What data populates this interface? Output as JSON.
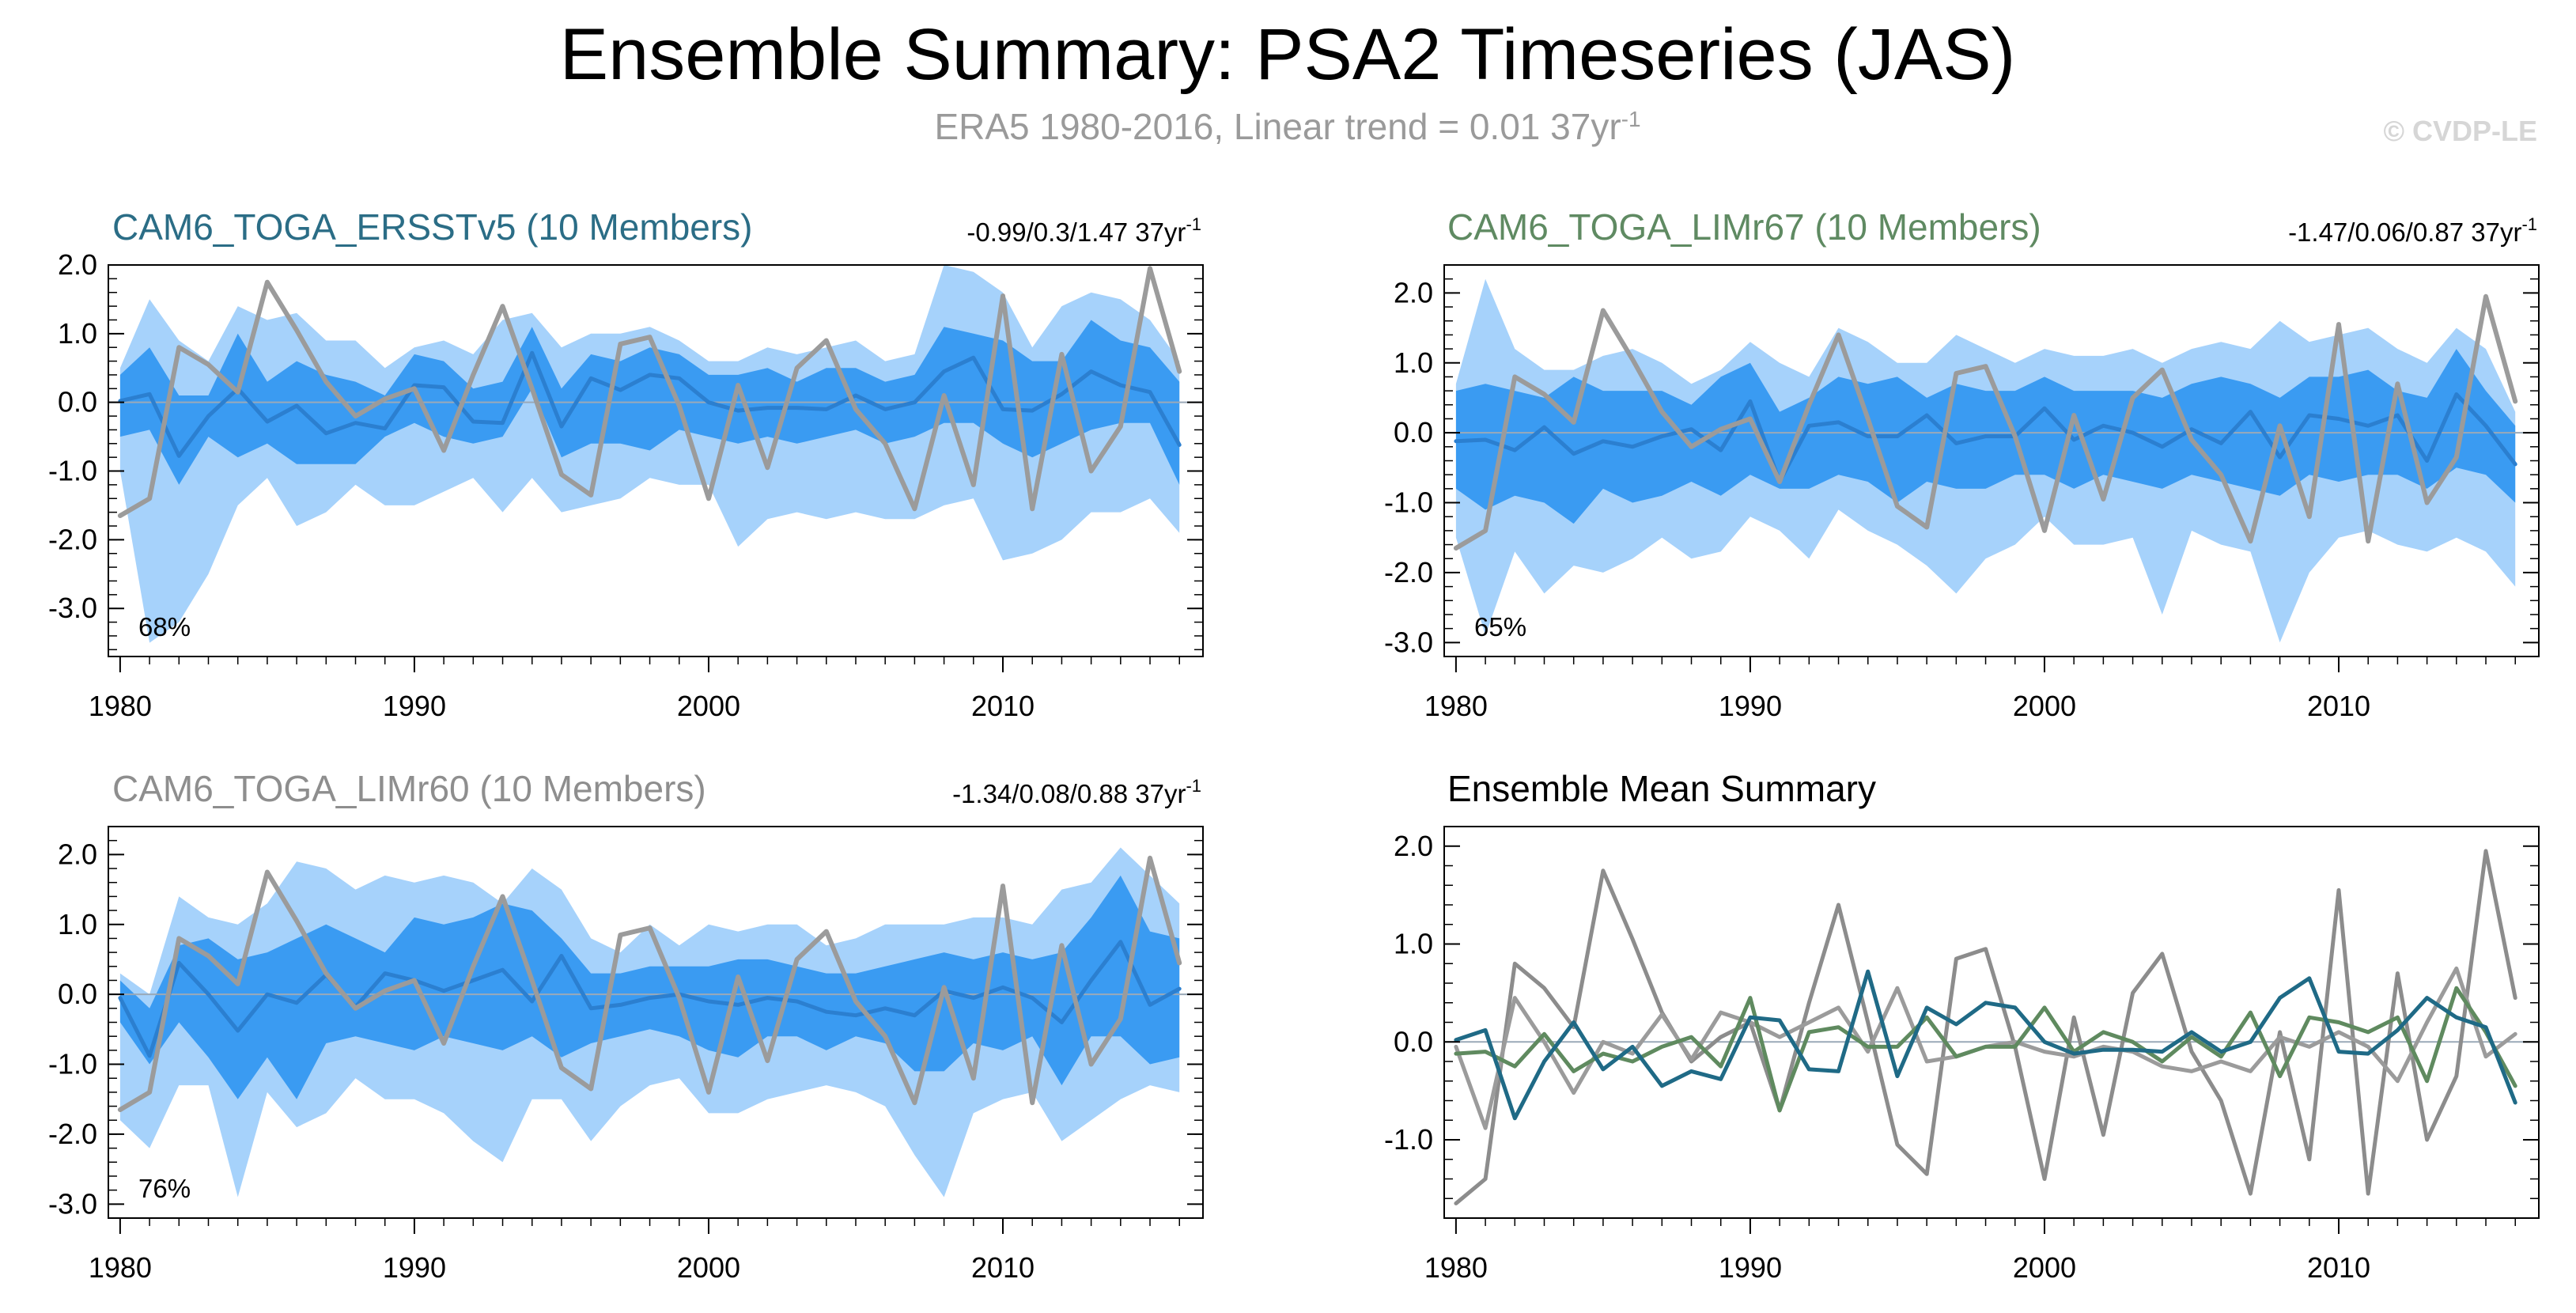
{
  "figure": {
    "title": "Ensemble Summary: PSA2 Timeseries (JAS)",
    "subtitle_main": "ERA5 1980-2016, Linear trend = 0.01 37yr",
    "subtitle_sup": "-1",
    "watermark": "© CVDP-LE"
  },
  "colors": {
    "outer_band": "#a6d2fb",
    "inner_band": "#3a9bf2",
    "ensemble_mean_line": "#2b7fd0",
    "observations": "#9b9b9b",
    "ersst_title": "#2b6d86",
    "limr67_title": "#5f8a62",
    "limr60_title": "#8e8e8e",
    "summary_ersst": "#1f6a86",
    "summary_limr67": "#5f8a5f",
    "summary_limr60": "#8c8c8c"
  },
  "chart_data": [
    {
      "type": "area",
      "title": "CAM6_TOGA_ERSSTv5 (10 Members)",
      "trend_main": "-0.99/0.3/1.47 37yr",
      "trend_sup": "-1",
      "percent_label": "68%",
      "x": [
        1980,
        1981,
        1982,
        1983,
        1984,
        1985,
        1986,
        1987,
        1988,
        1989,
        1990,
        1991,
        1992,
        1993,
        1994,
        1995,
        1996,
        1997,
        1998,
        1999,
        2000,
        2001,
        2002,
        2003,
        2004,
        2005,
        2006,
        2007,
        2008,
        2009,
        2010,
        2011,
        2012,
        2013,
        2014,
        2015,
        2016
      ],
      "xlim": [
        1979.6,
        2016.8
      ],
      "ylim": [
        -3.7,
        2.0
      ],
      "xticks": [
        1980,
        1990,
        2000,
        2010
      ],
      "yticks": [
        2.0,
        1.0,
        0.0,
        -1.0,
        -2.0,
        -3.0
      ],
      "ytick_labels": [
        "2.0",
        "1.0",
        "0.0",
        "-1.0",
        "-2.0",
        "-3.0"
      ],
      "outer_low": [
        -1.0,
        -3.5,
        -3.2,
        -2.5,
        -1.5,
        -1.1,
        -1.8,
        -1.6,
        -1.2,
        -1.5,
        -1.5,
        -1.3,
        -1.1,
        -1.6,
        -1.1,
        -1.6,
        -1.5,
        -1.4,
        -1.1,
        -1.2,
        -1.2,
        -2.1,
        -1.7,
        -1.6,
        -1.7,
        -1.6,
        -1.7,
        -1.7,
        -1.5,
        -1.4,
        -2.3,
        -2.2,
        -2.0,
        -1.6,
        -1.6,
        -1.4,
        -1.9
      ],
      "outer_high": [
        0.5,
        1.5,
        0.9,
        0.6,
        1.4,
        1.2,
        1.3,
        0.9,
        0.9,
        0.5,
        0.8,
        0.9,
        0.7,
        1.2,
        1.3,
        0.8,
        1.0,
        1.0,
        1.1,
        0.9,
        0.6,
        0.6,
        0.8,
        0.7,
        0.8,
        0.9,
        0.6,
        0.7,
        2.0,
        1.9,
        1.6,
        0.8,
        1.4,
        1.6,
        1.5,
        1.2,
        0.6
      ],
      "inner_low": [
        -0.5,
        -0.4,
        -1.2,
        -0.5,
        -0.8,
        -0.6,
        -0.9,
        -0.9,
        -0.9,
        -0.5,
        -0.3,
        -0.5,
        -0.6,
        -0.5,
        0.2,
        -0.8,
        -0.6,
        -0.6,
        -0.7,
        -0.4,
        -0.5,
        -0.6,
        -0.5,
        -0.6,
        -0.5,
        -0.4,
        -0.6,
        -0.5,
        -0.3,
        -0.3,
        -0.6,
        -0.8,
        -0.6,
        -0.4,
        -0.3,
        -0.3,
        -1.2
      ],
      "inner_high": [
        0.4,
        0.8,
        0.1,
        0.1,
        1.0,
        0.3,
        0.6,
        0.4,
        0.3,
        0.1,
        0.7,
        0.6,
        0.2,
        0.3,
        1.1,
        0.2,
        0.7,
        0.6,
        0.8,
        0.7,
        0.4,
        0.4,
        0.5,
        0.3,
        0.5,
        0.5,
        0.3,
        0.4,
        1.1,
        1.0,
        0.9,
        0.6,
        0.6,
        1.2,
        0.9,
        0.8,
        0.3
      ],
      "series": [
        {
          "name": "",
          "values": [
            0.02,
            0.12,
            -0.78,
            -0.2,
            0.2,
            -0.28,
            -0.05,
            -0.45,
            -0.3,
            -0.38,
            0.25,
            0.22,
            -0.28,
            -0.3,
            0.72,
            -0.35,
            0.35,
            0.18,
            0.4,
            0.35,
            0.0,
            -0.12,
            -0.08,
            -0.08,
            -0.1,
            0.1,
            -0.1,
            0.0,
            0.45,
            0.65,
            -0.1,
            -0.12,
            0.12,
            0.45,
            0.25,
            0.15,
            -0.62
          ]
        },
        {
          "name": "",
          "values": [
            -1.65,
            -1.4,
            0.8,
            0.55,
            0.15,
            1.75,
            1.05,
            0.3,
            -0.2,
            0.05,
            0.2,
            -0.7,
            0.4,
            1.4,
            0.2,
            -1.05,
            -1.35,
            0.85,
            0.95,
            -0.05,
            -1.4,
            0.25,
            -0.95,
            0.5,
            0.9,
            -0.1,
            -0.6,
            -1.55,
            0.1,
            -1.2,
            1.55,
            -1.55,
            0.7,
            -1.0,
            -0.35,
            1.95,
            0.45
          ]
        }
      ]
    },
    {
      "type": "area",
      "title": "CAM6_TOGA_LIMr67 (10 Members)",
      "trend_main": "-1.47/0.06/0.87 37yr",
      "trend_sup": "-1",
      "percent_label": "65%",
      "x": [
        1980,
        1981,
        1982,
        1983,
        1984,
        1985,
        1986,
        1987,
        1988,
        1989,
        1990,
        1991,
        1992,
        1993,
        1994,
        1995,
        1996,
        1997,
        1998,
        1999,
        2000,
        2001,
        2002,
        2003,
        2004,
        2005,
        2006,
        2007,
        2008,
        2009,
        2010,
        2011,
        2012,
        2013,
        2014,
        2015,
        2016
      ],
      "xlim": [
        1979.6,
        2016.8
      ],
      "ylim": [
        -3.2,
        2.4
      ],
      "xticks": [
        1980,
        1990,
        2000,
        2010
      ],
      "yticks": [
        2.0,
        1.0,
        0.0,
        -1.0,
        -2.0,
        -3.0
      ],
      "ytick_labels": [
        "2.0",
        "1.0",
        "0.0",
        "-1.0",
        "-2.0",
        "-3.0"
      ],
      "outer_low": [
        -1.5,
        -2.9,
        -1.7,
        -2.3,
        -1.9,
        -2.0,
        -1.8,
        -1.5,
        -1.8,
        -1.7,
        -1.2,
        -1.4,
        -1.8,
        -1.1,
        -1.4,
        -1.6,
        -1.9,
        -2.3,
        -1.8,
        -1.6,
        -1.2,
        -1.6,
        -1.6,
        -1.5,
        -2.6,
        -1.4,
        -1.6,
        -1.7,
        -3.0,
        -2.0,
        -1.5,
        -1.4,
        -1.6,
        -1.7,
        -1.5,
        -1.7,
        -2.2
      ],
      "outer_high": [
        0.7,
        2.2,
        1.2,
        0.9,
        0.9,
        1.1,
        1.2,
        1.0,
        0.7,
        0.9,
        1.3,
        1.0,
        0.8,
        1.5,
        1.3,
        1.0,
        1.0,
        1.4,
        1.2,
        1.0,
        1.2,
        1.1,
        1.1,
        1.2,
        1.0,
        1.2,
        1.3,
        1.2,
        1.6,
        1.3,
        1.4,
        1.5,
        1.2,
        1.0,
        1.5,
        1.2,
        0.3
      ],
      "inner_low": [
        -0.8,
        -1.1,
        -0.9,
        -1.0,
        -1.3,
        -0.8,
        -1.0,
        -0.9,
        -0.7,
        -0.9,
        -0.6,
        -0.8,
        -0.8,
        -0.6,
        -0.7,
        -1.0,
        -0.7,
        -0.8,
        -0.8,
        -0.6,
        -0.6,
        -0.8,
        -0.6,
        -0.7,
        -0.8,
        -0.6,
        -0.7,
        -0.8,
        -0.9,
        -0.6,
        -0.7,
        -0.6,
        -0.6,
        -0.8,
        -0.5,
        -0.6,
        -1.0
      ],
      "inner_high": [
        0.6,
        0.7,
        0.6,
        0.5,
        0.8,
        0.6,
        0.6,
        0.6,
        0.4,
        0.8,
        1.0,
        0.3,
        0.5,
        0.8,
        0.7,
        0.8,
        0.5,
        0.7,
        0.6,
        0.6,
        0.8,
        0.6,
        0.6,
        0.6,
        0.5,
        0.7,
        0.8,
        0.7,
        0.5,
        0.8,
        0.8,
        0.9,
        0.6,
        0.5,
        1.2,
        0.6,
        0.1
      ],
      "series": [
        {
          "name": "",
          "values": [
            -0.12,
            -0.1,
            -0.25,
            0.08,
            -0.3,
            -0.12,
            -0.2,
            -0.05,
            0.05,
            -0.25,
            0.45,
            -0.7,
            0.1,
            0.15,
            -0.05,
            -0.05,
            0.25,
            -0.15,
            -0.05,
            -0.05,
            0.35,
            -0.1,
            0.1,
            0.0,
            -0.2,
            0.05,
            -0.15,
            0.3,
            -0.35,
            0.25,
            0.2,
            0.1,
            0.25,
            -0.4,
            0.55,
            0.1,
            -0.45
          ]
        },
        {
          "name": "",
          "values": [
            -1.65,
            -1.4,
            0.8,
            0.55,
            0.15,
            1.75,
            1.05,
            0.3,
            -0.2,
            0.05,
            0.2,
            -0.7,
            0.4,
            1.4,
            0.2,
            -1.05,
            -1.35,
            0.85,
            0.95,
            -0.05,
            -1.4,
            0.25,
            -0.95,
            0.5,
            0.9,
            -0.1,
            -0.6,
            -1.55,
            0.1,
            -1.2,
            1.55,
            -1.55,
            0.7,
            -1.0,
            -0.35,
            1.95,
            0.45
          ]
        }
      ]
    },
    {
      "type": "area",
      "title": "CAM6_TOGA_LIMr60 (10 Members)",
      "trend_main": "-1.34/0.08/0.88 37yr",
      "trend_sup": "-1",
      "percent_label": "76%",
      "x": [
        1980,
        1981,
        1982,
        1983,
        1984,
        1985,
        1986,
        1987,
        1988,
        1989,
        1990,
        1991,
        1992,
        1993,
        1994,
        1995,
        1996,
        1997,
        1998,
        1999,
        2000,
        2001,
        2002,
        2003,
        2004,
        2005,
        2006,
        2007,
        2008,
        2009,
        2010,
        2011,
        2012,
        2013,
        2014,
        2015,
        2016
      ],
      "xlim": [
        1979.6,
        2016.8
      ],
      "ylim": [
        -3.2,
        2.4
      ],
      "xticks": [
        1980,
        1990,
        2000,
        2010
      ],
      "yticks": [
        2.0,
        1.0,
        0.0,
        -1.0,
        -2.0,
        -3.0
      ],
      "ytick_labels": [
        "2.0",
        "1.0",
        "0.0",
        "-1.0",
        "-2.0",
        "-3.0"
      ],
      "outer_low": [
        -1.8,
        -2.2,
        -1.3,
        -1.3,
        -2.9,
        -1.4,
        -1.9,
        -1.7,
        -1.2,
        -1.5,
        -1.5,
        -1.7,
        -2.1,
        -2.4,
        -1.5,
        -1.5,
        -2.1,
        -1.6,
        -1.3,
        -1.2,
        -1.7,
        -1.7,
        -1.5,
        -1.4,
        -1.3,
        -1.4,
        -1.6,
        -2.3,
        -2.9,
        -1.7,
        -1.5,
        -1.4,
        -2.1,
        -1.8,
        -1.5,
        -1.3,
        -1.4
      ],
      "outer_high": [
        0.3,
        0.0,
        1.4,
        1.1,
        1.0,
        1.3,
        1.9,
        1.8,
        1.5,
        1.7,
        1.6,
        1.7,
        1.6,
        1.3,
        1.8,
        1.5,
        0.8,
        0.6,
        1.0,
        0.7,
        1.0,
        0.9,
        1.0,
        1.0,
        0.7,
        0.8,
        1.0,
        1.0,
        1.0,
        1.1,
        1.1,
        1.0,
        1.5,
        1.6,
        2.1,
        1.7,
        1.3
      ],
      "inner_low": [
        -0.4,
        -1.0,
        -0.4,
        -0.9,
        -1.5,
        -0.9,
        -1.5,
        -0.7,
        -0.6,
        -0.7,
        -0.8,
        -0.6,
        -0.7,
        -0.8,
        -0.6,
        -0.9,
        -0.7,
        -0.6,
        -0.5,
        -0.6,
        -0.8,
        -0.9,
        -0.6,
        -0.6,
        -0.8,
        -0.6,
        -0.7,
        -1.1,
        -1.1,
        -0.7,
        -0.8,
        -0.6,
        -1.3,
        -0.6,
        -0.6,
        -1.0,
        -0.9
      ],
      "inner_high": [
        0.2,
        -0.2,
        0.7,
        0.8,
        0.5,
        0.6,
        0.8,
        1.0,
        0.8,
        0.6,
        1.1,
        1.0,
        1.1,
        1.3,
        1.2,
        0.8,
        0.3,
        0.3,
        0.4,
        0.4,
        0.4,
        0.5,
        0.5,
        0.4,
        0.3,
        0.3,
        0.4,
        0.5,
        0.6,
        0.5,
        0.6,
        0.5,
        0.6,
        1.1,
        1.7,
        0.9,
        0.8
      ],
      "series": [
        {
          "name": "",
          "values": [
            -0.05,
            -0.88,
            0.45,
            0.0,
            -0.52,
            0.0,
            -0.12,
            0.28,
            -0.18,
            0.3,
            0.2,
            0.05,
            0.2,
            0.35,
            -0.1,
            0.55,
            -0.2,
            -0.15,
            -0.05,
            0.0,
            -0.1,
            -0.15,
            -0.05,
            -0.1,
            -0.25,
            -0.3,
            -0.2,
            -0.3,
            0.05,
            -0.05,
            0.1,
            -0.05,
            -0.4,
            0.2,
            0.75,
            -0.15,
            0.08
          ]
        },
        {
          "name": "",
          "values": [
            -1.65,
            -1.4,
            0.8,
            0.55,
            0.15,
            1.75,
            1.05,
            0.3,
            -0.2,
            0.05,
            0.2,
            -0.7,
            0.4,
            1.4,
            0.2,
            -1.05,
            -1.35,
            0.85,
            0.95,
            -0.05,
            -1.4,
            0.25,
            -0.95,
            0.5,
            0.9,
            -0.1,
            -0.6,
            -1.55,
            0.1,
            -1.2,
            1.55,
            -1.55,
            0.7,
            -1.0,
            -0.35,
            1.95,
            0.45
          ]
        }
      ]
    },
    {
      "type": "line",
      "title": "Ensemble Mean Summary",
      "x": [
        1980,
        1981,
        1982,
        1983,
        1984,
        1985,
        1986,
        1987,
        1988,
        1989,
        1990,
        1991,
        1992,
        1993,
        1994,
        1995,
        1996,
        1997,
        1998,
        1999,
        2000,
        2001,
        2002,
        2003,
        2004,
        2005,
        2006,
        2007,
        2008,
        2009,
        2010,
        2011,
        2012,
        2013,
        2014,
        2015,
        2016
      ],
      "xlim": [
        1979.6,
        2016.8
      ],
      "ylim": [
        -1.8,
        2.2
      ],
      "xticks": [
        1980,
        1990,
        2000,
        2010
      ],
      "yticks": [
        2.0,
        1.0,
        0.0,
        -1.0
      ],
      "ytick_labels": [
        "2.0",
        "1.0",
        "0.0",
        "-1.0"
      ],
      "series": [
        {
          "name": "",
          "values": [
            -1.65,
            -1.4,
            0.8,
            0.55,
            0.15,
            1.75,
            1.05,
            0.3,
            -0.2,
            0.05,
            0.2,
            -0.7,
            0.4,
            1.4,
            0.2,
            -1.05,
            -1.35,
            0.85,
            0.95,
            -0.05,
            -1.4,
            0.25,
            -0.95,
            0.5,
            0.9,
            -0.1,
            -0.6,
            -1.55,
            0.1,
            -1.2,
            1.55,
            -1.55,
            0.7,
            -1.0,
            -0.35,
            1.95,
            0.45
          ]
        },
        {
          "name": "",
          "values": [
            -0.05,
            -0.88,
            0.45,
            0.0,
            -0.52,
            0.0,
            -0.12,
            0.28,
            -0.18,
            0.3,
            0.2,
            0.05,
            0.2,
            0.35,
            -0.1,
            0.55,
            -0.2,
            -0.15,
            -0.05,
            0.0,
            -0.1,
            -0.15,
            -0.05,
            -0.1,
            -0.25,
            -0.3,
            -0.2,
            -0.3,
            0.05,
            -0.05,
            0.1,
            -0.05,
            -0.4,
            0.2,
            0.75,
            -0.15,
            0.08
          ]
        },
        {
          "name": "",
          "values": [
            -0.12,
            -0.1,
            -0.25,
            0.08,
            -0.3,
            -0.12,
            -0.2,
            -0.05,
            0.05,
            -0.25,
            0.45,
            -0.7,
            0.1,
            0.15,
            -0.05,
            -0.05,
            0.25,
            -0.15,
            -0.05,
            -0.05,
            0.35,
            -0.1,
            0.1,
            0.0,
            -0.2,
            0.05,
            -0.15,
            0.3,
            -0.35,
            0.25,
            0.2,
            0.1,
            0.25,
            -0.4,
            0.55,
            0.1,
            -0.45
          ]
        },
        {
          "name": "",
          "values": [
            0.02,
            0.12,
            -0.78,
            -0.2,
            0.2,
            -0.28,
            -0.05,
            -0.45,
            -0.3,
            -0.38,
            0.25,
            0.22,
            -0.28,
            -0.3,
            0.72,
            -0.35,
            0.35,
            0.18,
            0.4,
            0.35,
            0.0,
            -0.12,
            -0.08,
            -0.08,
            -0.1,
            0.1,
            -0.1,
            0.0,
            0.45,
            0.65,
            -0.1,
            -0.12,
            0.12,
            0.45,
            0.25,
            0.15,
            -0.62
          ]
        }
      ]
    }
  ]
}
